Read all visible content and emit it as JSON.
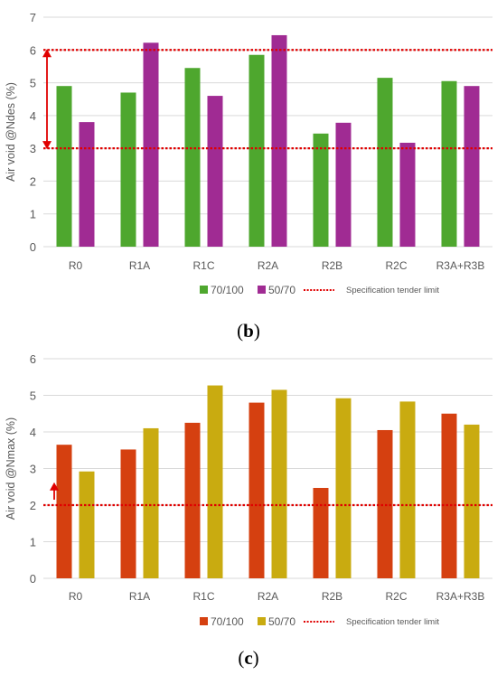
{
  "chart_data": [
    {
      "type": "bar",
      "categories": [
        "R0",
        "R1A",
        "R1C",
        "R2A",
        "R2B",
        "R2C",
        "R3A+R3B"
      ],
      "series": [
        {
          "name": "70/100",
          "color": "#4ea72e",
          "values": [
            4.9,
            4.7,
            5.45,
            5.85,
            3.45,
            5.15,
            5.05
          ]
        },
        {
          "name": "50/70",
          "color": "#a02b93",
          "values": [
            3.8,
            6.22,
            4.6,
            6.45,
            3.78,
            3.17,
            4.9
          ]
        }
      ],
      "ylabel": "Air void @Ndes (%)",
      "ylim": [
        0,
        7
      ],
      "yticks": [
        "0",
        "1",
        "2",
        "3",
        "4",
        "5",
        "6",
        "7"
      ],
      "grid": true,
      "reference_lines": [
        {
          "name": "Specification tender limit",
          "value": 6.0,
          "color": "#e00000"
        },
        {
          "value": 3.0,
          "color": "#e00000"
        }
      ],
      "arrow": {
        "from": 3.0,
        "to": 6.0,
        "direction": "both"
      },
      "legend_position": "bottom",
      "caption_label": "b"
    },
    {
      "type": "bar",
      "categories": [
        "R0",
        "R1A",
        "R1C",
        "R2A",
        "R2B",
        "R2C",
        "R3A+R3B"
      ],
      "series": [
        {
          "name": "70/100",
          "color": "#d54010",
          "values": [
            3.65,
            3.52,
            4.25,
            4.8,
            2.47,
            4.05,
            4.5
          ]
        },
        {
          "name": "50/70",
          "color": "#c9ab10",
          "values": [
            2.92,
            4.1,
            5.27,
            5.15,
            4.92,
            4.83,
            4.2
          ]
        }
      ],
      "ylabel": "Air void @Nmax (%)",
      "ylim": [
        0,
        6
      ],
      "yticks": [
        "0",
        "1",
        "2",
        "3",
        "4",
        "5",
        "6"
      ],
      "grid": true,
      "reference_lines": [
        {
          "name": "Specification tender limit",
          "value": 2.0,
          "color": "#e00000"
        }
      ],
      "arrow": {
        "from": 2.0,
        "to": 2.6,
        "direction": "up"
      },
      "legend_position": "bottom",
      "caption_label": "c"
    }
  ],
  "captions": {
    "b": {
      "open": "(",
      "label": "b",
      "close": ")"
    },
    "c": {
      "open": "(",
      "label": "c",
      "close": ")"
    }
  }
}
